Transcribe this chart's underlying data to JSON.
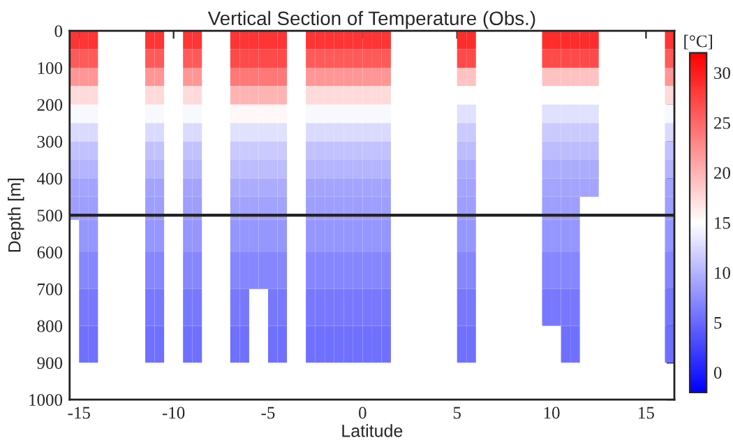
{
  "chart_data": {
    "type": "heatmap",
    "title": "Vertical Section of Temperature (Obs.)",
    "xlabel": "Latitude",
    "ylabel": "Depth [m]",
    "clabel": "[°C]",
    "x": [
      -15.25,
      -14.75,
      -14.25,
      -13.75,
      -13.25,
      -12.75,
      -12.25,
      -11.75,
      -11.25,
      -10.75,
      -10.25,
      -9.75,
      -9.25,
      -8.75,
      -8.25,
      -7.75,
      -7.25,
      -6.75,
      -6.25,
      -5.75,
      -5.25,
      -4.75,
      -4.25,
      -3.75,
      -3.25,
      -2.75,
      -2.25,
      -1.75,
      -1.25,
      -0.75,
      -0.25,
      0.25,
      0.75,
      1.25,
      1.75,
      2.25,
      2.75,
      3.25,
      3.75,
      4.25,
      4.75,
      5.25,
      5.75,
      6.25,
      6.75,
      7.25,
      7.75,
      8.25,
      8.75,
      9.25,
      9.75,
      10.25,
      10.75,
      11.25,
      11.75,
      12.25,
      12.75,
      13.25,
      13.75,
      14.25,
      14.75,
      15.25,
      15.75,
      16.25
    ],
    "y": [
      25,
      75,
      125,
      175,
      225,
      275,
      325,
      375,
      425,
      475,
      550,
      650,
      750,
      850
    ],
    "cells": [
      [
        28.5,
        28.5,
        28.5,
        null,
        null,
        null,
        null,
        null,
        28.5,
        28.5,
        null,
        null,
        28.5,
        28.5,
        null,
        null,
        null,
        28.5,
        28.5,
        28.5,
        28.5,
        28.5,
        28.5,
        null,
        null,
        28.5,
        28.5,
        28.5,
        28.5,
        28.5,
        28.5,
        28.5,
        28.5,
        28.5,
        null,
        null,
        null,
        null,
        null,
        null,
        null,
        29,
        29,
        null,
        null,
        null,
        null,
        null,
        null,
        null,
        29,
        29,
        29,
        29,
        29,
        29,
        null,
        null,
        null,
        null,
        null,
        null,
        null,
        28.5
      ],
      [
        26,
        26,
        26,
        null,
        null,
        null,
        null,
        null,
        26,
        26,
        null,
        null,
        26,
        26,
        null,
        null,
        null,
        27,
        27,
        27,
        27,
        27,
        27,
        null,
        null,
        26,
        26,
        26,
        26,
        26,
        26,
        26,
        26,
        26,
        null,
        null,
        null,
        null,
        null,
        null,
        null,
        27,
        27,
        null,
        null,
        null,
        null,
        null,
        null,
        null,
        27,
        27,
        27,
        27,
        27,
        27,
        null,
        null,
        null,
        null,
        null,
        null,
        null,
        26
      ],
      [
        22,
        22,
        22,
        null,
        null,
        null,
        null,
        null,
        22,
        22,
        null,
        null,
        22,
        22,
        null,
        null,
        null,
        24,
        24,
        24,
        24,
        24,
        24,
        null,
        null,
        22,
        22,
        22,
        22,
        22,
        22,
        22,
        22,
        22,
        null,
        null,
        null,
        null,
        null,
        null,
        null,
        19,
        19,
        null,
        null,
        null,
        null,
        null,
        null,
        null,
        19,
        19,
        19,
        19,
        19,
        19,
        null,
        null,
        null,
        null,
        null,
        null,
        null,
        22
      ],
      [
        17.5,
        17.5,
        17.5,
        null,
        null,
        null,
        null,
        null,
        17.5,
        17.5,
        null,
        null,
        17.5,
        17.5,
        null,
        null,
        null,
        20,
        20,
        20,
        20,
        20,
        20,
        null,
        null,
        17.5,
        17.5,
        17.5,
        17.5,
        17.5,
        17.5,
        17.5,
        17.5,
        17.5,
        null,
        null,
        null,
        null,
        null,
        null,
        null,
        15,
        15,
        null,
        null,
        null,
        null,
        null,
        null,
        null,
        15,
        15,
        15,
        15,
        15,
        15,
        null,
        null,
        null,
        null,
        null,
        null,
        null,
        17.5
      ],
      [
        14.5,
        14.5,
        14.5,
        null,
        null,
        null,
        null,
        null,
        14.5,
        14.5,
        null,
        null,
        14.5,
        14.5,
        null,
        null,
        null,
        15.5,
        15.5,
        15.5,
        15.5,
        15.5,
        15.5,
        null,
        null,
        14.5,
        14.5,
        14.5,
        14.5,
        14.5,
        14.5,
        14.5,
        14.5,
        14.5,
        null,
        null,
        null,
        null,
        null,
        null,
        null,
        13,
        13,
        null,
        null,
        null,
        null,
        null,
        null,
        null,
        13,
        13,
        13,
        13,
        13,
        13,
        null,
        null,
        null,
        null,
        null,
        null,
        null,
        14.5
      ],
      [
        12.5,
        12.5,
        12.5,
        null,
        null,
        null,
        null,
        null,
        12.5,
        12.5,
        null,
        null,
        12.5,
        12.5,
        null,
        null,
        null,
        13,
        13,
        13,
        13,
        13,
        13,
        null,
        null,
        12.5,
        12.5,
        12.5,
        12.5,
        12.5,
        12.5,
        12.5,
        12.5,
        12.5,
        null,
        null,
        null,
        null,
        null,
        null,
        null,
        11.5,
        11.5,
        null,
        null,
        null,
        null,
        null,
        null,
        null,
        11.5,
        11.5,
        11.5,
        11.5,
        11.5,
        11.5,
        null,
        null,
        null,
        null,
        null,
        null,
        null,
        12.5
      ],
      [
        11,
        11,
        11,
        null,
        null,
        null,
        null,
        null,
        11,
        11,
        null,
        null,
        11,
        11,
        null,
        null,
        null,
        11.5,
        11.5,
        11.5,
        11.5,
        11.5,
        11.5,
        null,
        null,
        11,
        11,
        11,
        11,
        11,
        11,
        11,
        11,
        11,
        null,
        null,
        null,
        null,
        null,
        null,
        null,
        10.5,
        10.5,
        null,
        null,
        null,
        null,
        null,
        null,
        null,
        10.5,
        10.5,
        10.5,
        10.5,
        10.5,
        10.5,
        null,
        null,
        null,
        null,
        null,
        null,
        null,
        11
      ],
      [
        10,
        10,
        10,
        null,
        null,
        null,
        null,
        null,
        10,
        10,
        null,
        null,
        10,
        10,
        null,
        null,
        null,
        10.5,
        10.5,
        10.5,
        10.5,
        10.5,
        10.5,
        null,
        null,
        10,
        10,
        10,
        10,
        10,
        10,
        10,
        10,
        10,
        null,
        null,
        null,
        null,
        null,
        null,
        null,
        9.5,
        9.5,
        null,
        null,
        null,
        null,
        null,
        null,
        null,
        9.5,
        9.5,
        9.5,
        9.5,
        9.5,
        9.5,
        null,
        null,
        null,
        null,
        null,
        null,
        null,
        10
      ],
      [
        9,
        9,
        9,
        null,
        null,
        null,
        null,
        null,
        9,
        9,
        null,
        null,
        9,
        9,
        null,
        null,
        null,
        9.5,
        9.5,
        9.5,
        9.5,
        9.5,
        9.5,
        null,
        null,
        9,
        9,
        9,
        9,
        9,
        9,
        9,
        9,
        9,
        null,
        null,
        null,
        null,
        null,
        null,
        null,
        9,
        9,
        null,
        null,
        null,
        null,
        null,
        null,
        null,
        9,
        9,
        9,
        9,
        9,
        9,
        null,
        null,
        null,
        null,
        null,
        null,
        null,
        9
      ],
      [
        8.5,
        8.5,
        8.5,
        null,
        null,
        null,
        null,
        null,
        8.5,
        8.5,
        null,
        null,
        8.5,
        8.5,
        null,
        null,
        null,
        8.8,
        8.8,
        8.8,
        8.8,
        8.8,
        8.8,
        null,
        null,
        8.5,
        8.5,
        8.5,
        8.5,
        8.5,
        8.5,
        8.5,
        8.5,
        8.5,
        null,
        null,
        null,
        null,
        null,
        null,
        null,
        8.5,
        8.5,
        null,
        null,
        null,
        null,
        null,
        null,
        null,
        8.5,
        8.5,
        8.5,
        8.5,
        null,
        null,
        null,
        null,
        null,
        null,
        null,
        null,
        null,
        8.5
      ],
      [
        null,
        8,
        8,
        null,
        null,
        null,
        null,
        null,
        8,
        8,
        null,
        null,
        8,
        8,
        null,
        null,
        null,
        8,
        8,
        8,
        8,
        8,
        8,
        null,
        null,
        8,
        8,
        8,
        8,
        8,
        8,
        8,
        8,
        8,
        null,
        null,
        null,
        null,
        null,
        null,
        null,
        8,
        8,
        null,
        null,
        null,
        null,
        null,
        null,
        null,
        8,
        8,
        8,
        8,
        null,
        null,
        null,
        null,
        null,
        null,
        null,
        null,
        null,
        8
      ],
      [
        null,
        7,
        7,
        null,
        null,
        null,
        null,
        null,
        7,
        7,
        null,
        null,
        7,
        7,
        null,
        null,
        null,
        7,
        7,
        7,
        7,
        7,
        7,
        null,
        null,
        7,
        7,
        7,
        7,
        7,
        7,
        7,
        7,
        7,
        null,
        null,
        null,
        null,
        null,
        null,
        null,
        7,
        7,
        null,
        null,
        null,
        null,
        null,
        null,
        null,
        7,
        7,
        7,
        7,
        null,
        null,
        null,
        null,
        null,
        null,
        null,
        null,
        null,
        7
      ],
      [
        null,
        6,
        6,
        null,
        null,
        null,
        null,
        null,
        6,
        6,
        null,
        null,
        6,
        6,
        null,
        null,
        null,
        6,
        6,
        null,
        null,
        6,
        6,
        null,
        null,
        6,
        6,
        6,
        6,
        6,
        6,
        6,
        6,
        6,
        null,
        null,
        null,
        null,
        null,
        null,
        null,
        6,
        6,
        null,
        null,
        null,
        null,
        null,
        null,
        null,
        6,
        6,
        6,
        6,
        null,
        null,
        null,
        null,
        null,
        null,
        null,
        null,
        null,
        6
      ],
      [
        null,
        5.5,
        5.5,
        null,
        null,
        null,
        null,
        null,
        5.5,
        5.5,
        null,
        null,
        5.5,
        5.5,
        null,
        null,
        null,
        5.5,
        5.5,
        null,
        null,
        5.5,
        5.5,
        null,
        null,
        5.5,
        5.5,
        5.5,
        5.5,
        5.5,
        5.5,
        5.5,
        5.5,
        5.5,
        null,
        null,
        null,
        null,
        null,
        null,
        null,
        5.5,
        5.5,
        null,
        null,
        null,
        null,
        null,
        null,
        null,
        null,
        null,
        5.5,
        5.5,
        null,
        null,
        null,
        null,
        null,
        null,
        null,
        null,
        null,
        5.5
      ]
    ],
    "xlim": [
      -15.5,
      16.5
    ],
    "xticks": [
      -15,
      -10,
      -5,
      0,
      5,
      10,
      15
    ],
    "ylim": [
      1000,
      0
    ],
    "yticks": [
      0,
      100,
      200,
      300,
      400,
      500,
      600,
      700,
      800,
      900,
      1000
    ],
    "ref_lines": [
      {
        "axis": "y",
        "value": 500,
        "color": "#222222"
      }
    ],
    "clim": [
      -2,
      32
    ],
    "cticks": [
      0,
      5,
      10,
      15,
      20,
      25,
      30
    ]
  }
}
